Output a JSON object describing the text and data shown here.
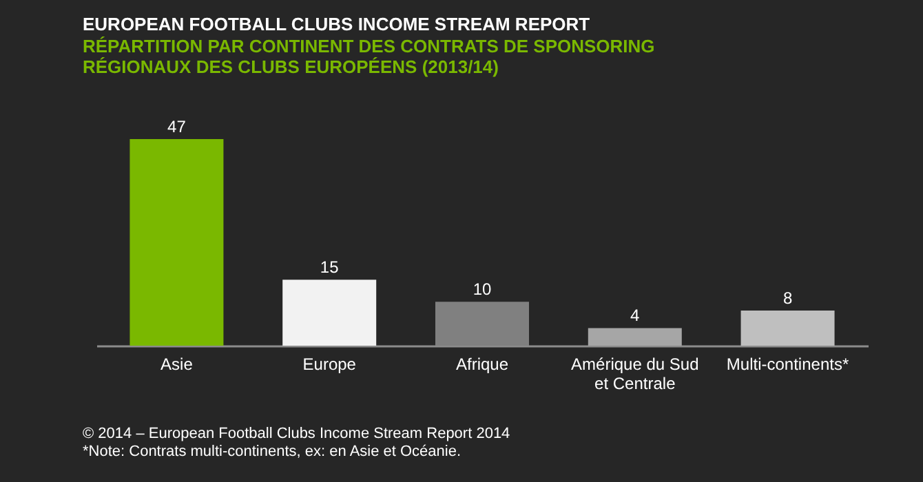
{
  "chart_data": {
    "type": "bar",
    "title": "EUROPEAN FOOTBALL CLUBS INCOME STREAM REPORT",
    "subtitle": [
      "RÉPARTITION PAR CONTINENT DES CONTRATS DE SPONSORING",
      "RÉGIONAUX DES CLUBS EUROPÉENS (2013/14)"
    ],
    "categories": [
      "Asie",
      "Europe",
      "Afrique",
      "Amérique du Sud et Centrale",
      "Multi-continents*"
    ],
    "values": [
      47,
      15,
      10,
      4,
      8
    ],
    "colors": [
      "#7ab800",
      "#f2f2f2",
      "#808080",
      "#a6a6a6",
      "#bfbfbf"
    ],
    "data_labels": true,
    "annotations": [
      "© 2014 – European Football Clubs Income Stream Report 2014",
      "*Note: Contrats multi-continents, ex: en Asie et Océanie."
    ]
  }
}
